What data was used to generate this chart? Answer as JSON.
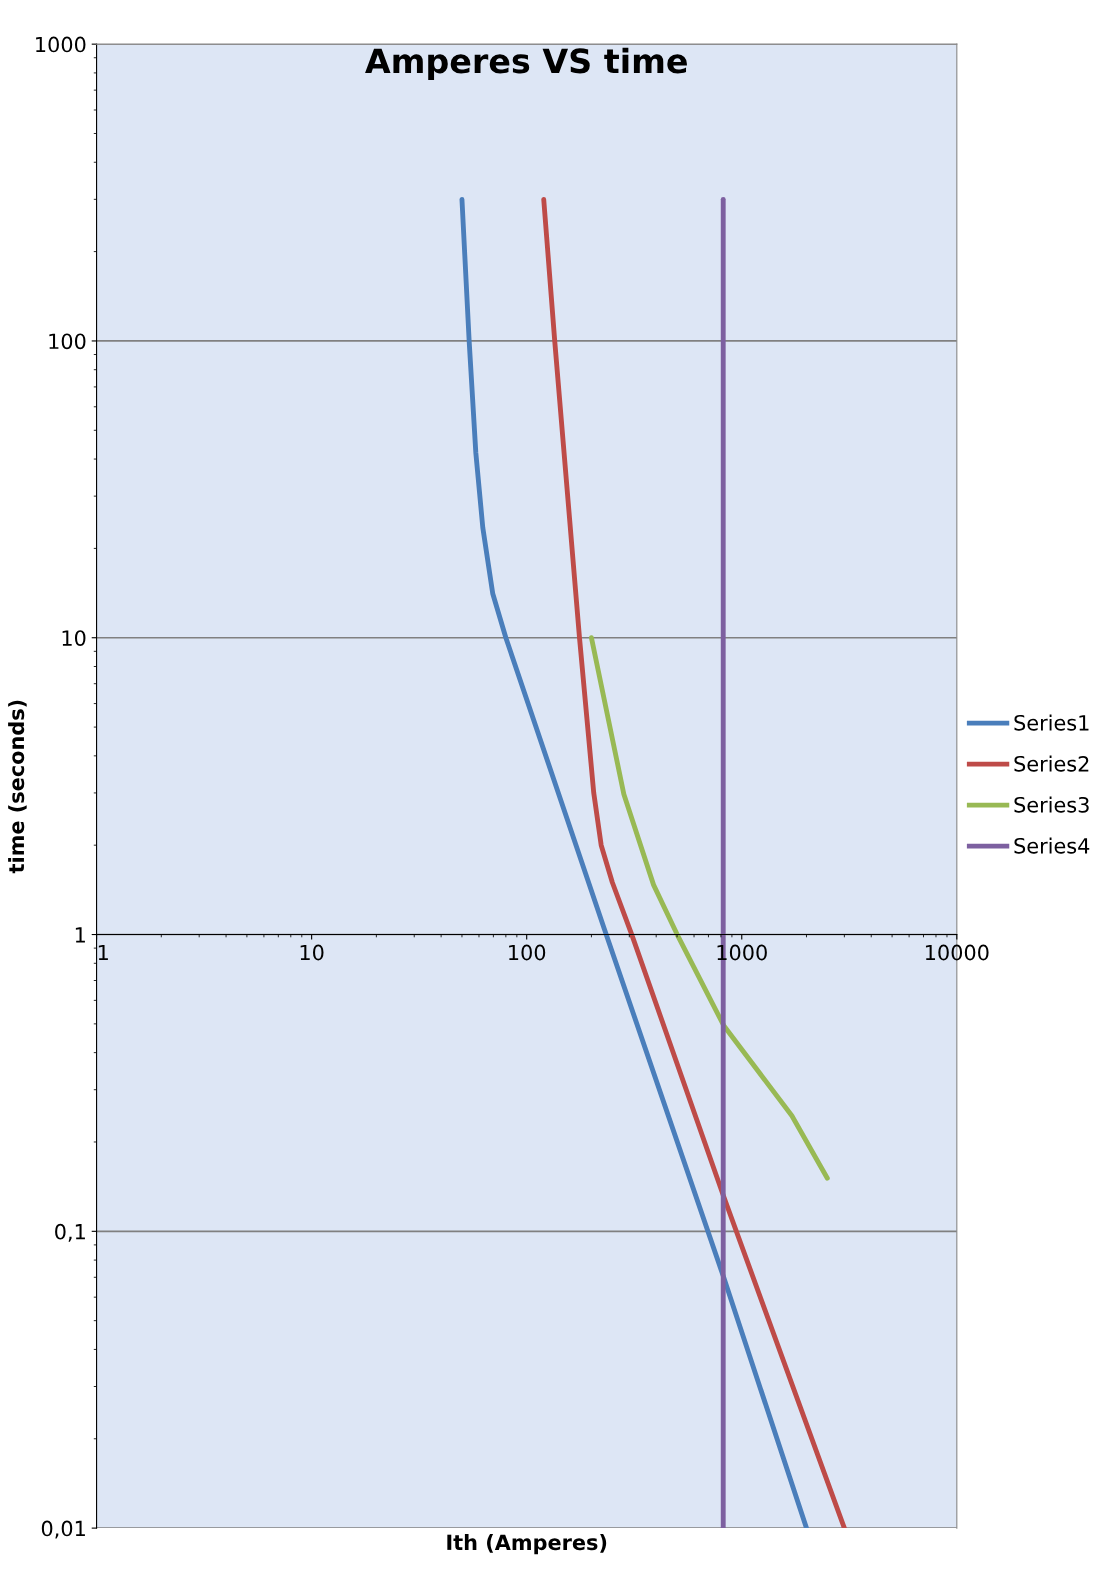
{
  "chart_data": {
    "type": "line",
    "title": "Amperes VS time",
    "xlabel": "Ith (Amperes)",
    "ylabel": "time (seconds)",
    "log": "xy",
    "grid": "y",
    "legend": "right",
    "marker": "none",
    "line_style": "solid",
    "xlim": [
      1,
      10000
    ],
    "xticks": [
      1,
      10,
      100,
      1000,
      10000
    ],
    "ylim": [
      0.01,
      1000
    ],
    "yticks": [
      {
        "value": 0.01,
        "label": "0,01"
      },
      {
        "value": 0.1,
        "label": "0,1"
      },
      1,
      10,
      100,
      1000
    ],
    "series": [
      {
        "name": "Series1",
        "color": "#4a7ebb",
        "x": [
          50,
          54,
          58,
          62.5,
          69.5,
          80,
          229,
          824,
          2000
        ],
        "values": [
          300,
          100,
          42,
          23.5,
          14.1,
          10,
          1.05,
          0.07,
          0.01
        ]
      },
      {
        "name": "Series2",
        "color": "#be4b48",
        "x": [
          120,
          135,
          176,
          205,
          222,
          250,
          308,
          824,
          3000
        ],
        "values": [
          300,
          100,
          10,
          3,
          2,
          1.5,
          1,
          0.131,
          0.01
        ]
      },
      {
        "name": "Series3",
        "color": "#98b954",
        "x": [
          200,
          283,
          389,
          501,
          824,
          1710,
          2500
        ],
        "values": [
          10,
          2.97,
          1.47,
          1,
          0.494,
          0.245,
          0.151
        ]
      },
      {
        "name": "Series4",
        "color": "#7d60a0",
        "x": [
          820,
          820
        ],
        "values": [
          300,
          0.01
        ]
      }
    ]
  }
}
